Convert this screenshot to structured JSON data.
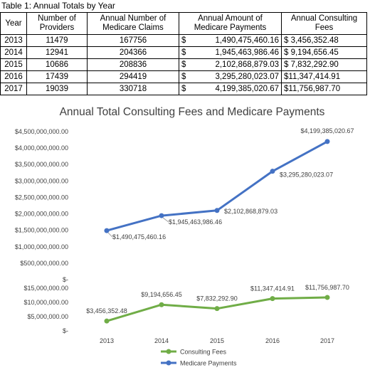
{
  "table": {
    "title": "Table 1: Annual Totals by Year",
    "headers": [
      "Year",
      "Number of Providers",
      "Annual Number of Medicare Claims",
      "Annual Amount of Medicare Payments",
      "Annual Consulting Fees"
    ],
    "rows": [
      {
        "year": "2013",
        "providers": "11479",
        "claims": "167756",
        "payments_symbol": "$",
        "payments": "1,490,475,460.16",
        "fees": "$ 3,456,352.48"
      },
      {
        "year": "2014",
        "providers": "12941",
        "claims": "204366",
        "payments_symbol": "$",
        "payments": "1,945,463,986.46",
        "fees": "$ 9,194,656.45"
      },
      {
        "year": "2015",
        "providers": "10686",
        "claims": "208836",
        "payments_symbol": "$",
        "payments": "2,102,868,879.03",
        "fees": "$ 7,832,292.90"
      },
      {
        "year": "2016",
        "providers": "17439",
        "claims": "294419",
        "payments_symbol": "$",
        "payments": "3,295,280,023.07",
        "fees": "$11,347,414.91"
      },
      {
        "year": "2017",
        "providers": "19039",
        "claims": "330718",
        "payments_symbol": "$",
        "payments": "4,199,385,020.67",
        "fees": "$11,756,987.70"
      }
    ]
  },
  "chart_data": {
    "type": "line",
    "title": "Annual Total Consulting Fees and Medicare Payments",
    "categories": [
      "2013",
      "2014",
      "2015",
      "2016",
      "2017"
    ],
    "upper_panel": {
      "ylim": [
        0,
        4500000000
      ],
      "ticks": [
        "$4,500,000,000.00",
        "$4,000,000,000.00",
        "$3,500,000,000.00",
        "$3,000,000,000.00",
        "$2,500,000,000.00",
        "$2,000,000,000.00",
        "$1,500,000,000.00",
        "$1,000,000,000.00",
        "$500,000,000.00",
        "$-"
      ],
      "series": {
        "name": "Medicare Payments",
        "color": "#4472c4",
        "values": [
          1490475460.16,
          1945463986.46,
          2102868879.03,
          3295280023.07,
          4199385020.67
        ],
        "labels": [
          "$1,490,475,460.16",
          "$1,945,463,986.46",
          "$2,102,868,879.03",
          "$3,295,280,023.07",
          "$4,199,385,020.67"
        ]
      }
    },
    "lower_panel": {
      "ylim": [
        0,
        15000000
      ],
      "ticks": [
        "$15,000,000.00",
        "$10,000,000.00",
        "$5,000,000.00",
        "$-"
      ],
      "series": {
        "name": "Consulting Fees",
        "color": "#70ad47",
        "values": [
          3456352.48,
          9194656.45,
          7832292.9,
          11347414.91,
          11756987.7
        ],
        "labels": [
          "$3,456,352.48",
          "$9,194,656.45",
          "$7,832,292.90",
          "$11,347,414.91",
          "$11,756,987.70"
        ]
      }
    },
    "legend": {
      "position": "bottom",
      "entries": [
        "Consulting Fees",
        "Medicare Payments"
      ]
    }
  }
}
